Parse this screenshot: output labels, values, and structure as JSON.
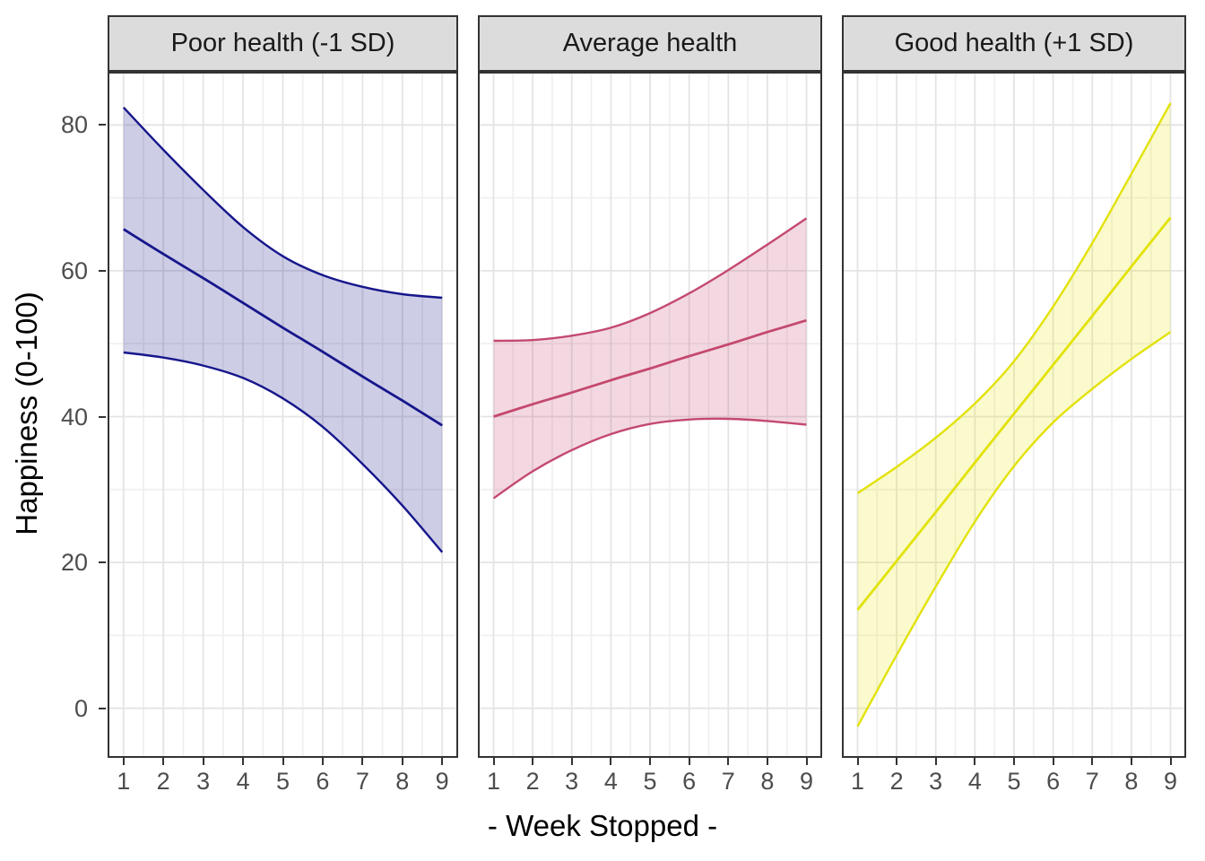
{
  "figure": {
    "y_axis_title": "Happiness (0-100)",
    "x_axis_title": "- Week Stopped -",
    "y_ticks": [
      "0",
      "20",
      "40",
      "60",
      "80"
    ],
    "x_ticks": [
      "1",
      "2",
      "3",
      "4",
      "5",
      "6",
      "7",
      "8",
      "9"
    ],
    "colors": {
      "strip_bg": "#DCDCDC",
      "panel_border": "#333333",
      "grid_major": "#E4E4E4",
      "grid_minor": "#F0F0F0",
      "tick_label": "#4D4D4D",
      "axis_title": "#000000"
    }
  },
  "chart_data": {
    "type": "line",
    "description": "Faceted regression fit lines with shaded confidence ribbons",
    "xlabel": "- Week Stopped -",
    "ylabel": "Happiness (0-100)",
    "x": [
      1,
      2,
      3,
      4,
      5,
      6,
      7,
      8,
      9
    ],
    "xlim": [
      0.6,
      9.4
    ],
    "ylim": [
      -6.8,
      87.3
    ],
    "y_ticks_major": [
      0,
      20,
      40,
      60,
      80
    ],
    "y_ticks_minor": [
      10,
      30,
      50,
      70
    ],
    "x_ticks_major": [
      1,
      2,
      3,
      4,
      5,
      6,
      7,
      8,
      9
    ],
    "x_ticks_minor": [
      1.5,
      2.5,
      3.5,
      4.5,
      5.5,
      6.5,
      7.5,
      8.5
    ],
    "grid": true,
    "legend": "none",
    "facets": [
      {
        "label": "Poor health (-1 SD)",
        "line_color": "#16168C",
        "fill_color": "rgba(26,26,140,0.22)",
        "fit": [
          65.7,
          62.3,
          59.0,
          55.6,
          52.2,
          48.9,
          45.5,
          42.2,
          38.8
        ],
        "upper": [
          82.4,
          76.6,
          71.1,
          66.0,
          62.0,
          59.4,
          57.8,
          56.8,
          56.3
        ],
        "lower": [
          48.8,
          48.1,
          47.0,
          45.3,
          42.5,
          38.6,
          33.5,
          27.8,
          21.4
        ]
      },
      {
        "label": "Average health",
        "line_color": "#C4496F",
        "fill_color": "rgba(196,73,114,0.21)",
        "fit": [
          40.0,
          41.7,
          43.3,
          45.0,
          46.6,
          48.3,
          49.9,
          51.6,
          53.2
        ],
        "upper": [
          50.4,
          50.5,
          51.1,
          52.2,
          54.2,
          56.9,
          60.1,
          63.6,
          67.2
        ],
        "lower": [
          28.8,
          32.5,
          35.4,
          37.6,
          39.0,
          39.6,
          39.7,
          39.4,
          38.9
        ]
      },
      {
        "label": "Good health (+1 SD)",
        "line_color": "#E2E20A",
        "fill_color": "rgba(230,230,0,0.20)",
        "fit": [
          13.5,
          20.2,
          26.9,
          33.7,
          40.4,
          47.1,
          53.8,
          60.6,
          67.3
        ],
        "upper": [
          29.5,
          33.1,
          37.1,
          41.8,
          47.6,
          55.1,
          63.8,
          73.3,
          83.0
        ],
        "lower": [
          -2.5,
          7.3,
          16.7,
          25.6,
          33.2,
          39.2,
          43.8,
          47.9,
          51.6
        ]
      }
    ]
  }
}
